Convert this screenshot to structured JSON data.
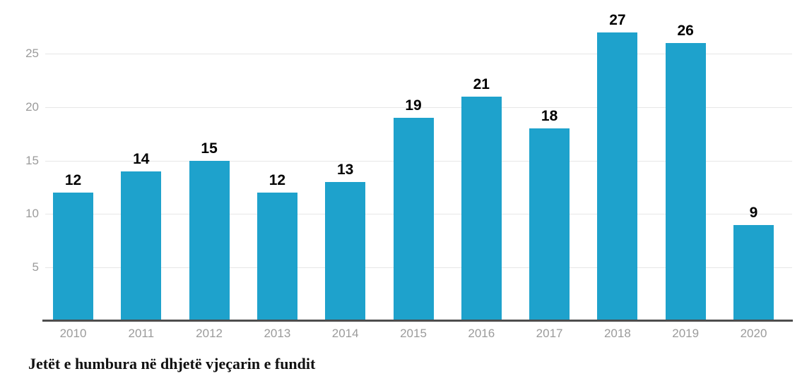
{
  "chart_data": {
    "type": "bar",
    "title": "Jetët e humbura në dhjetë vjeçarin e fundit",
    "xlabel": "",
    "ylabel": "",
    "categories": [
      "2010",
      "2011",
      "2012",
      "2013",
      "2014",
      "2015",
      "2016",
      "2017",
      "2018",
      "2019",
      "2020"
    ],
    "values": [
      12,
      14,
      15,
      12,
      13,
      19,
      21,
      18,
      27,
      26,
      9
    ],
    "yticks": [
      5,
      10,
      15,
      20,
      25
    ],
    "ylim": [
      0,
      30
    ],
    "grid": true,
    "legend": "none",
    "bar_color": "#1ea2cc",
    "value_label_color": "#000000",
    "axis_tick_color": "#9b9b9b",
    "gridline_color": "#e6e6e6",
    "baseline_color": "#4d4d4d"
  }
}
